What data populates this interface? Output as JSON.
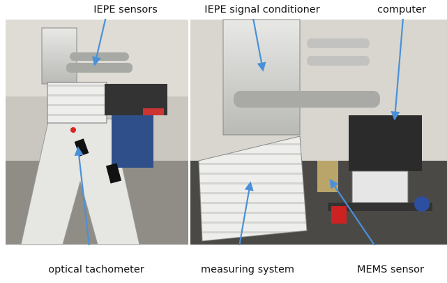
{
  "annotations": {
    "top": [
      "IEPE sensors",
      "IEPE signal conditioner",
      "computer"
    ],
    "bottom": [
      "optical tachometer",
      "measuring system",
      "MEMS sensor"
    ]
  }
}
